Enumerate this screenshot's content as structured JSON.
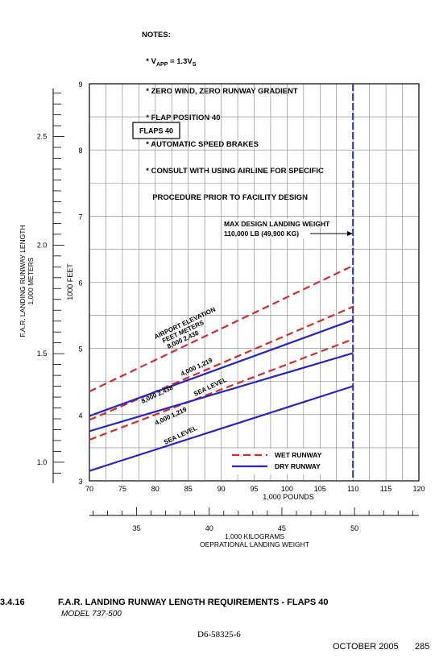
{
  "notes": {
    "header": "NOTES:",
    "items": [
      "* V",
      "* ZERO WIND, ZERO RUNWAY GRADIENT",
      "* FLAP POSITION 40",
      "* AUTOMATIC SPEED BRAKES",
      "* CONSULT WITH USING AIRLINE FOR SPECIFIC",
      "PROCEDURE PRIOR TO FACILITY DESIGN"
    ],
    "vapp_sub": "APP",
    "vapp_rest": " = 1.3V",
    "vapp_s": "S"
  },
  "footer": {
    "section_number": "3.4.16",
    "section_title": "F.A.R. LANDING RUNWAY LENGTH REQUIREMENTS - FLAPS 40",
    "model": "MODEL  737-500",
    "doc_number": "D6-58325-6",
    "date": "OCTOBER 2005",
    "page": "285"
  },
  "chart_data": {
    "type": "line",
    "xlabel": "1,000 POUNDS",
    "ylabel": "1000 FEET",
    "xlim": [
      70,
      120
    ],
    "ylim": [
      3,
      9
    ],
    "x_ticks": [
      "70",
      "75",
      "80",
      "85",
      "90",
      "95",
      "100",
      "105",
      "110",
      "115",
      "120"
    ],
    "y_ticks": [
      "3",
      "4",
      "5",
      "6",
      "7",
      "8",
      "9"
    ],
    "secondary_y": {
      "label_line1": "F.A.R. LANDING RUNWAY LENGTH",
      "label_line2": "1,000 METERS",
      "ticks": [
        "1.0",
        "1.5",
        "2.0",
        "2.5"
      ],
      "tick_values": [
        1.0,
        1.5,
        2.0,
        2.5
      ]
    },
    "secondary_x": {
      "label_line1": "1,000 KILOGRAMS",
      "label_line2": "OEPRATIONAL LANDING WEIGHT",
      "ticks": [
        "35",
        "40",
        "45",
        "50"
      ],
      "tick_values": [
        35,
        40,
        45,
        50
      ]
    },
    "box_label": "FLAPS 40",
    "annotations": {
      "max_weight_line1": "MAX DESIGN LANDING WEIGHT",
      "max_weight_line2": "110,000 LB (49,900 KG)",
      "elevation_line1": "AIRPORT ELEVATION",
      "elevation_line2": "FEET     METERS",
      "wet_8000": "8,000   2,438",
      "dry_8000": "8,000   2,438",
      "dry_4000": "4,000   1,219",
      "wet_sea": "SEA LEVEL",
      "wet_4000": "4,000   1,219",
      "dry_sea": "SEA LEVEL"
    },
    "max_weight_x": 110,
    "series": [
      {
        "name": "8,000 2,438",
        "kind": "wet",
        "x": [
          70,
          110
        ],
        "y": [
          4.35,
          6.25
        ]
      },
      {
        "name": "4,000 1,219",
        "kind": "wet",
        "x": [
          70,
          110
        ],
        "y": [
          3.92,
          5.63
        ]
      },
      {
        "name": "SEA LEVEL",
        "kind": "wet",
        "x": [
          70,
          110
        ],
        "y": [
          3.62,
          5.14
        ]
      },
      {
        "name": "8,000 2,438",
        "kind": "dry",
        "x": [
          70,
          110
        ],
        "y": [
          3.98,
          5.43
        ]
      },
      {
        "name": "4,000 1,219",
        "kind": "dry",
        "x": [
          70,
          110
        ],
        "y": [
          3.75,
          4.93
        ]
      },
      {
        "name": "SEA LEVEL",
        "kind": "dry",
        "x": [
          70,
          110
        ],
        "y": [
          3.15,
          4.43
        ]
      }
    ],
    "legend": {
      "placement": "bottom-right",
      "wet": "WET RUNWAY",
      "dry": "DRY RUNWAY"
    },
    "colors": {
      "wet": "#d42a2a",
      "dry": "#2424c0",
      "max_weight_line": "#3a3ab0",
      "grid": "#808080"
    }
  }
}
